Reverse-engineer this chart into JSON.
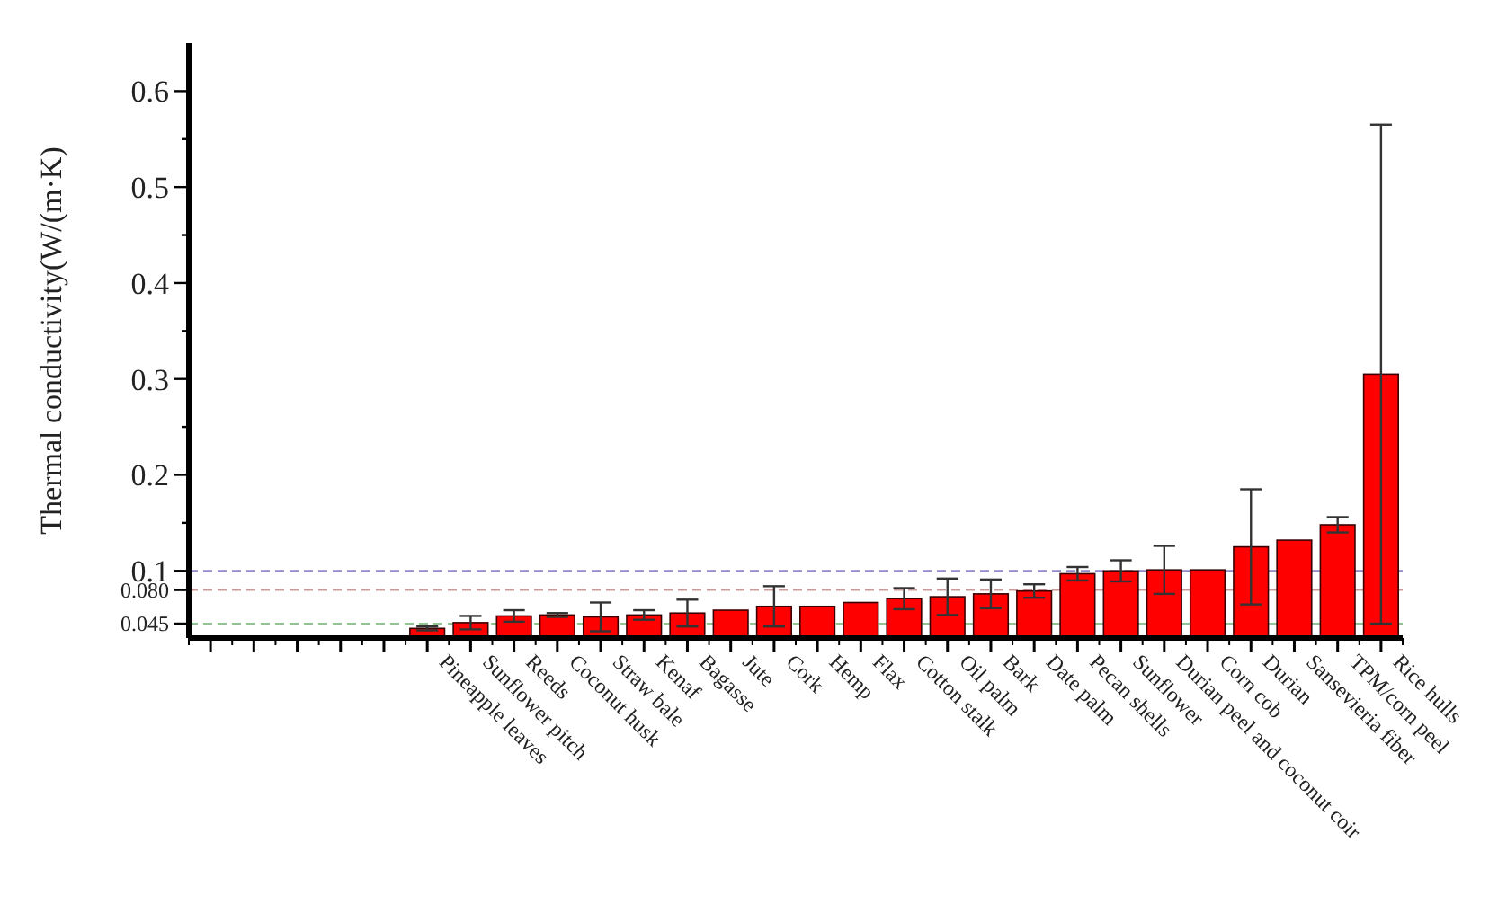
{
  "chart_data": {
    "type": "bar",
    "ylabel": "Thermal conductivity(W/(m·K)",
    "categories": [
      null,
      null,
      null,
      null,
      null,
      "Pineapple leaves",
      "Sunflower pitch",
      "Reeds",
      "Coconut husk",
      "Straw bale",
      "Kenaf",
      "Bagasse",
      "Jute",
      "Cork",
      "Hemp",
      "Flax",
      "Cotton stalk",
      "Oil palm",
      "Bark",
      "Date palm",
      "Pecan shells",
      "Sunflower",
      "Durian peel and coconut coir",
      "Corn cob",
      "Durian",
      "Sansevieria fiber",
      "TPM/corn peel",
      "Rice hulls"
    ],
    "values": [
      null,
      null,
      null,
      null,
      null,
      0.04,
      0.046,
      0.053,
      0.054,
      0.052,
      0.054,
      0.056,
      0.059,
      0.063,
      0.063,
      0.067,
      0.071,
      0.073,
      0.076,
      0.079,
      0.097,
      0.1,
      0.101,
      0.101,
      0.125,
      0.132,
      0.148,
      0.305
    ],
    "errors": [
      null,
      null,
      null,
      null,
      null,
      0.002,
      0.007,
      0.006,
      0.002,
      0.015,
      0.005,
      0.014,
      null,
      0.021,
      null,
      null,
      0.011,
      0.019,
      0.015,
      0.007,
      0.007,
      0.011,
      0.025,
      null,
      0.06,
      null,
      0.008,
      0.26
    ],
    "color": "#ff0000",
    "ylim": [
      0.03,
      0.65
    ],
    "yticks": [
      {
        "value": 0.045,
        "label": "0.045"
      },
      {
        "value": 0.08,
        "label": "0.080"
      },
      0.1,
      {
        "value": 0.15,
        "label": null
      },
      0.2,
      {
        "value": 0.25,
        "label": null
      },
      0.3,
      {
        "value": 0.35,
        "label": null
      },
      0.4,
      {
        "value": 0.45,
        "label": null
      },
      0.5,
      {
        "value": 0.55,
        "label": null
      },
      0.6
    ],
    "ref_lines": [
      {
        "axis": "y",
        "value": 0.1,
        "color": "#9088c8",
        "line_style": "dashed"
      },
      {
        "axis": "y",
        "value": 0.08,
        "color": "#c89a9a",
        "line_style": "dashed"
      },
      {
        "axis": "y",
        "value": 0.045,
        "color": "#90c490",
        "line_style": "dashed"
      }
    ],
    "grid": false
  }
}
